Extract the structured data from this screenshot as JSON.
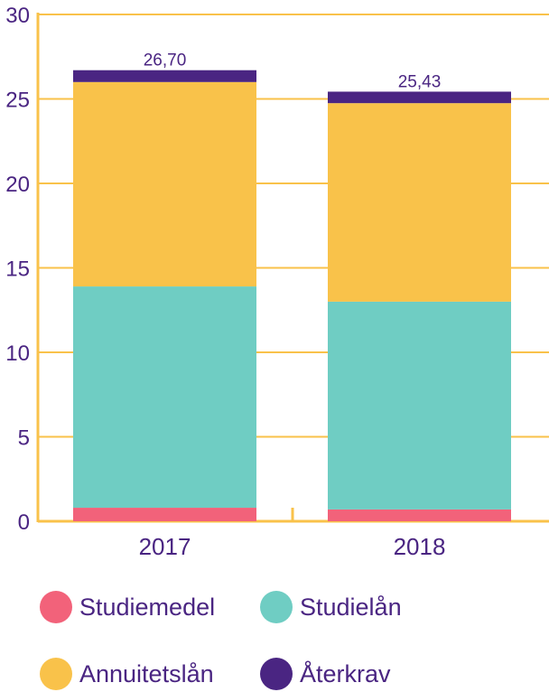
{
  "chart_data": {
    "type": "stacked-bar",
    "title": "",
    "xlabel": "",
    "ylabel": "",
    "ylim": [
      0,
      30
    ],
    "yticks": [
      0,
      5,
      10,
      15,
      20,
      25,
      30
    ],
    "categories": [
      "2017",
      "2018"
    ],
    "series": [
      {
        "name": "Studiemedel",
        "color": "#f2627a",
        "values": [
          0.8,
          0.7
        ]
      },
      {
        "name": "Studielån",
        "color": "#6fcdc3",
        "values": [
          13.1,
          12.3
        ]
      },
      {
        "name": "Annuitetslån",
        "color": "#f9c24a",
        "values": [
          12.1,
          11.75
        ]
      },
      {
        "name": "Återkrav",
        "color": "#4a2582",
        "values": [
          0.7,
          0.68
        ]
      }
    ],
    "totals": [
      "26,70",
      "25,43"
    ],
    "axis_color": "#f9c24a",
    "grid": true
  }
}
